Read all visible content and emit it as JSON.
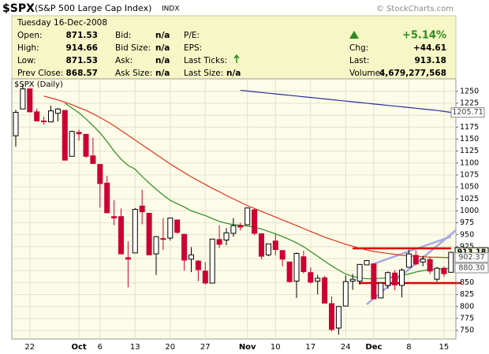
{
  "header": {
    "symbol": "$SPX",
    "name": "(S&P 500 Large Cap Index)",
    "exchange": "INDX",
    "copyright": "© StockCharts.com"
  },
  "quote": {
    "date": "Tuesday  16-Dec-2008",
    "columns": [
      [
        {
          "label": "Open:",
          "value": "871.53"
        },
        {
          "label": "High:",
          "value": "914.66"
        },
        {
          "label": "Low:",
          "value": "871.53"
        },
        {
          "label": "Prev Close:",
          "value": "868.57"
        }
      ],
      [
        {
          "label": "Bid:",
          "value": "n/a"
        },
        {
          "label": "Bid Size:",
          "value": "n/a"
        },
        {
          "label": "Ask:",
          "value": "n/a"
        },
        {
          "label": "Ask Size:",
          "value": "n/a"
        }
      ],
      [
        {
          "label": "P/E:"
        },
        {
          "label": "EPS:"
        },
        {
          "label": "Last Ticks:"
        },
        {
          "label": "Last Size:",
          "value": "n/a"
        }
      ],
      [
        {
          "value": "+5.14%"
        },
        {
          "label": "Chg:",
          "value": "+44.61"
        },
        {
          "label": "Last:",
          "value": "913.18"
        },
        {
          "label": "Volume:",
          "value": "4,679,277,568"
        }
      ]
    ]
  },
  "chart_data": {
    "type": "candlestick",
    "label": "$SPX (Daily)",
    "categories": [
      null,
      null,
      "22",
      null,
      null,
      null,
      null,
      null,
      null,
      "Oct",
      null,
      null,
      "6",
      null,
      null,
      null,
      null,
      "13",
      null,
      null,
      null,
      null,
      "20",
      null,
      null,
      null,
      null,
      "27",
      null,
      null,
      null,
      null,
      null,
      "Nov",
      null,
      null,
      null,
      "10",
      null,
      null,
      null,
      null,
      "17",
      null,
      null,
      null,
      null,
      "24",
      null,
      null,
      null,
      "Dec",
      null,
      null,
      null,
      null,
      "8",
      null,
      null,
      null,
      null,
      "15",
      null
    ],
    "open": [
      1157,
      1213,
      1255,
      1207,
      1188,
      1186,
      1204,
      1210,
      1114,
      1164,
      1160,
      1115,
      1097,
      1058,
      988,
      988,
      902,
      912,
      1010,
      995,
      910,
      942,
      943,
      981,
      951,
      899,
      895,
      874,
      849,
      940,
      939,
      953,
      969,
      971,
      1002,
      952,
      908,
      937,
      917,
      893,
      853,
      904,
      871,
      853,
      860,
      806,
      755,
      801,
      853,
      853,
      887,
      889,
      818,
      844,
      870,
      844,
      882,
      907,
      893,
      898,
      857,
      880,
      871.53
    ],
    "high": [
      1211,
      1265,
      1255,
      1214,
      1197,
      1220,
      1215,
      1210,
      1168,
      1170,
      1160,
      1153,
      1097,
      1073,
      1022,
      1005,
      936,
      1006,
      1044,
      995,
      947,
      985,
      985,
      981,
      951,
      924,
      897,
      893,
      941,
      970,
      964,
      985,
      975,
      1007,
      1004,
      952,
      931,
      951,
      917,
      893,
      913,
      917,
      882,
      866,
      864,
      821,
      801,
      865,
      868,
      888,
      897,
      889,
      850,
      873,
      876,
      880,
      919,
      917,
      906,
      904,
      883,
      884,
      914.66
    ],
    "low": [
      1134,
      1213,
      1206,
      1187,
      1180,
      1186,
      1187,
      1106,
      1114,
      1147,
      1111,
      1098,
      1007,
      996,
      970,
      909,
      840,
      912,
      972,
      908,
      866,
      918,
      938,
      952,
      875,
      872,
      853,
      846,
      848,
      922,
      928,
      946,
      959,
      971,
      949,
      899,
      905,
      907,
      884,
      850,
      818,
      869,
      848,
      825,
      806,
      748,
      741,
      801,
      835,
      846,
      887,
      815,
      818,
      837,
      834,
      819,
      882,
      886,
      884,
      868,
      852,
      862,
      871.53
    ],
    "close": [
      1206,
      1255,
      1207,
      1188,
      1186,
      1209,
      1213,
      1106,
      1166,
      1161,
      1114,
      1099,
      1057,
      996,
      985,
      910,
      899,
      1003,
      998,
      908,
      946,
      941,
      985,
      955,
      897,
      908,
      877,
      849,
      941,
      930,
      954,
      969,
      966,
      1006,
      953,
      905,
      931,
      919,
      899,
      852,
      911,
      873,
      851,
      859,
      807,
      752,
      800,
      852,
      857,
      888,
      896,
      816,
      849,
      871,
      845,
      876,
      910,
      889,
      899,
      874,
      880,
      868.57,
      913.18
    ],
    "up_color": "#000000",
    "down_color": "#cc0033",
    "overlays": [
      {
        "color": "#2e8b22",
        "values": [
          null,
          null,
          null,
          null,
          null,
          null,
          null,
          1225,
          1215,
          1205,
          1192,
          1178,
          1163,
          1145,
          1125,
          1108,
          1095,
          1087,
          1072,
          1058,
          1045,
          1033,
          1022,
          1015,
          1008,
          1000,
          995,
          990,
          984,
          978,
          974,
          971,
          970,
          968,
          966,
          962,
          957,
          952,
          946,
          940,
          933,
          925,
          915,
          905,
          895,
          885,
          876,
          868,
          863,
          860,
          858,
          858,
          859,
          860,
          862,
          865,
          868,
          872,
          875,
          877,
          878,
          879,
          880.3
        ]
      },
      {
        "color": "#e8341c",
        "values": [
          null,
          null,
          null,
          null,
          1240,
          1236,
          1232,
          1227,
          1222,
          1216,
          1210,
          1203,
          1195,
          1187,
          1178,
          1168,
          1158,
          1148,
          1138,
          1128,
          1118,
          1108,
          1098,
          1089,
          1080,
          1071,
          1063,
          1055,
          1047,
          1040,
          1032,
          1025,
          1018,
          1011,
          1005,
          999,
          993,
          987,
          981,
          975,
          969,
          963,
          957,
          951,
          945,
          940,
          935,
          930,
          926,
          922,
          918,
          915,
          913,
          911,
          909,
          907,
          906,
          905,
          904,
          903,
          903,
          902.5,
          902.37
        ]
      },
      {
        "color": "#2b2ba0",
        "values": [
          null,
          null,
          null,
          null,
          null,
          null,
          null,
          null,
          null,
          null,
          null,
          null,
          null,
          null,
          null,
          null,
          null,
          null,
          null,
          null,
          null,
          null,
          null,
          null,
          null,
          null,
          null,
          null,
          null,
          null,
          null,
          null,
          1252,
          1250.5,
          1249,
          1247.5,
          1246,
          1244.5,
          1243,
          1241.5,
          1240,
          1238.5,
          1237,
          1235.5,
          1234,
          1232.5,
          1231,
          1229.5,
          1228,
          1226.5,
          1225,
          1223.5,
          1222,
          1220.5,
          1219,
          1217.5,
          1216,
          1214.5,
          1213,
          1211.5,
          1210,
          1208,
          1205.71
        ]
      }
    ],
    "end_labels": [
      1205.71,
      913.18,
      902.37,
      {
        "value": 880.3,
        "label": "880.30"
      }
    ],
    "ylim": [
      732,
      1276
    ],
    "yticks": [
      750,
      775,
      800,
      825,
      850,
      875,
      900,
      925,
      950,
      975,
      1000,
      1025,
      1050,
      1075,
      1100,
      1125,
      1150,
      1175,
      1200,
      1225,
      1250
    ],
    "grid": true
  }
}
